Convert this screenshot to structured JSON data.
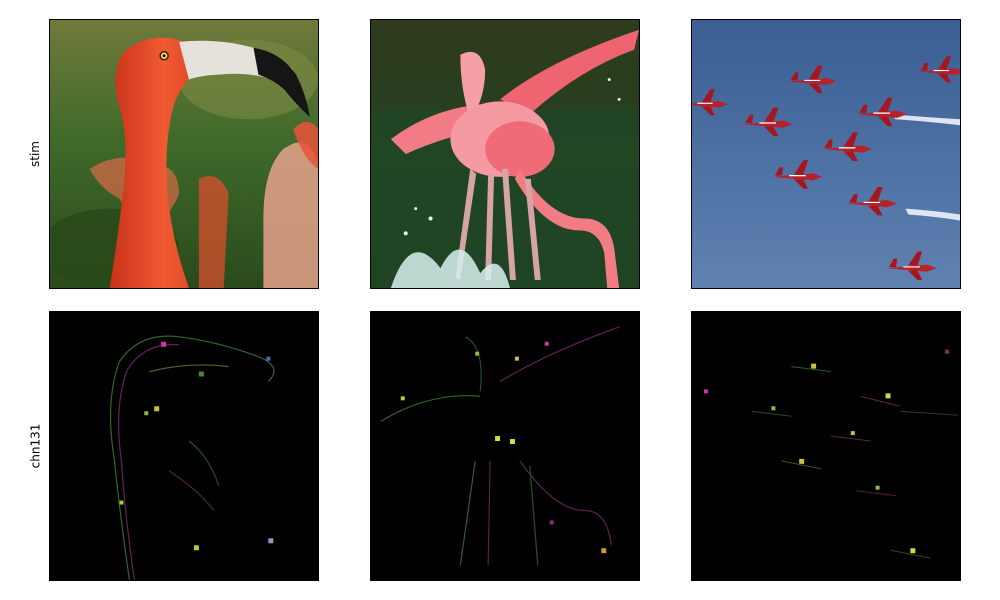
{
  "rows": [
    {
      "label": "stim"
    },
    {
      "label": "chn131"
    }
  ],
  "panels": [
    {
      "row": 0,
      "col": 0,
      "subject": "flamingo-head-closeup",
      "dominant_color": "#e8472a"
    },
    {
      "row": 0,
      "col": 1,
      "subject": "flamingos-splashing-in-water",
      "dominant_color": "#f07a7a"
    },
    {
      "row": 0,
      "col": 2,
      "subject": "red-jets-formation-blue-sky",
      "dominant_color": "#3a5f95"
    },
    {
      "row": 1,
      "col": 0,
      "subject": "channel-response-flamingo-head",
      "dominant_color": "#000000"
    },
    {
      "row": 1,
      "col": 1,
      "subject": "channel-response-flamingos-water",
      "dominant_color": "#000000"
    },
    {
      "row": 1,
      "col": 2,
      "subject": "channel-response-jets",
      "dominant_color": "#000000"
    }
  ]
}
